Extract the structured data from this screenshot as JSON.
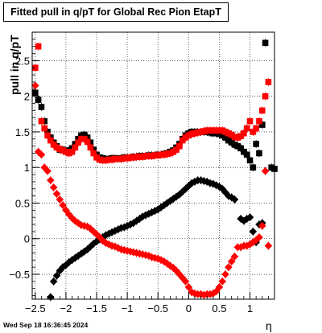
{
  "chart_data": {
    "type": "scatter",
    "title": "Fitted pull in q/pT for Global Rec Pion EtapT",
    "xlabel": "η",
    "ylabel": "pull in q/pT",
    "xlim": [
      -2.55,
      1.4
    ],
    "ylim": [
      -0.85,
      2.9
    ],
    "x_ticks": [
      -2.5,
      -2,
      -1.5,
      -1,
      -0.5,
      0,
      0.5,
      1
    ],
    "x_tick_labels": [
      "−2.5",
      "−2",
      "−1.5",
      "−1",
      "−0.5",
      "0",
      "0.5",
      "1"
    ],
    "y_ticks": [
      -0.5,
      0,
      0.5,
      1,
      1.5,
      2,
      2.5
    ],
    "y_tick_labels": [
      "−0.5",
      "0",
      "0.5",
      "1",
      "1.5",
      "2",
      "2.5"
    ],
    "grid": true,
    "timestamp": "Wed Sep 18 16:36:45 2024",
    "series": [
      {
        "color": "#000000",
        "marker": "square",
        "points": [
          [
            -2.5,
            2.05
          ],
          [
            -2.45,
            1.95
          ],
          [
            -2.4,
            1.85
          ],
          [
            -2.35,
            1.65
          ],
          [
            -2.3,
            1.5
          ],
          [
            -2.25,
            1.42
          ],
          [
            -2.2,
            1.35
          ],
          [
            -2.15,
            1.3
          ],
          [
            -2.1,
            1.25
          ],
          [
            -2.05,
            1.25
          ],
          [
            -2.0,
            1.22
          ],
          [
            -1.95,
            1.24
          ],
          [
            -1.9,
            1.27
          ],
          [
            -1.85,
            1.33
          ],
          [
            -1.8,
            1.4
          ],
          [
            -1.75,
            1.45
          ],
          [
            -1.7,
            1.46
          ],
          [
            -1.65,
            1.42
          ],
          [
            -1.6,
            1.35
          ],
          [
            -1.55,
            1.25
          ],
          [
            -1.5,
            1.18
          ],
          [
            -1.45,
            1.14
          ],
          [
            -1.4,
            1.13
          ],
          [
            -1.35,
            1.12
          ],
          [
            -1.3,
            1.12
          ],
          [
            -1.25,
            1.13
          ],
          [
            -1.2,
            1.13
          ],
          [
            -1.15,
            1.12
          ],
          [
            -1.1,
            1.13
          ],
          [
            -1.05,
            1.14
          ],
          [
            -1.0,
            1.14
          ],
          [
            -0.95,
            1.14
          ],
          [
            -0.9,
            1.15
          ],
          [
            -0.85,
            1.15
          ],
          [
            -0.8,
            1.16
          ],
          [
            -0.75,
            1.16
          ],
          [
            -0.7,
            1.16
          ],
          [
            -0.65,
            1.17
          ],
          [
            -0.6,
            1.17
          ],
          [
            -0.55,
            1.17
          ],
          [
            -0.5,
            1.18
          ],
          [
            -0.45,
            1.18
          ],
          [
            -0.4,
            1.19
          ],
          [
            -0.35,
            1.2
          ],
          [
            -0.3,
            1.22
          ],
          [
            -0.25,
            1.24
          ],
          [
            -0.2,
            1.28
          ],
          [
            -0.15,
            1.33
          ],
          [
            -0.1,
            1.4
          ],
          [
            -0.05,
            1.45
          ],
          [
            0.0,
            1.48
          ],
          [
            0.05,
            1.5
          ],
          [
            0.1,
            1.5
          ],
          [
            0.15,
            1.5
          ],
          [
            0.2,
            1.5
          ],
          [
            0.25,
            1.5
          ],
          [
            0.3,
            1.5
          ],
          [
            0.35,
            1.49
          ],
          [
            0.4,
            1.48
          ],
          [
            0.45,
            1.48
          ],
          [
            0.5,
            1.47
          ],
          [
            0.55,
            1.45
          ],
          [
            0.6,
            1.42
          ],
          [
            0.65,
            1.38
          ],
          [
            0.7,
            1.35
          ],
          [
            0.75,
            1.32
          ],
          [
            0.8,
            1.3
          ],
          [
            0.85,
            1.27
          ],
          [
            0.9,
            1.22
          ],
          [
            0.95,
            1.18
          ],
          [
            1.0,
            1.1
          ],
          [
            1.05,
            1.0
          ],
          [
            1.1,
            1.33
          ],
          [
            1.15,
            1.2
          ],
          [
            1.2,
            1.6
          ],
          [
            1.25,
            2.75
          ],
          [
            1.35,
            1.0
          ],
          [
            1.4,
            0.98
          ]
        ]
      },
      {
        "color": "#000000",
        "marker": "diamond",
        "points": [
          [
            -2.25,
            -0.82
          ],
          [
            -2.2,
            -0.6
          ],
          [
            -2.15,
            -0.52
          ],
          [
            -2.1,
            -0.45
          ],
          [
            -2.05,
            -0.4
          ],
          [
            -2.0,
            -0.37
          ],
          [
            -1.95,
            -0.33
          ],
          [
            -1.9,
            -0.3
          ],
          [
            -1.85,
            -0.27
          ],
          [
            -1.8,
            -0.24
          ],
          [
            -1.75,
            -0.21
          ],
          [
            -1.7,
            -0.18
          ],
          [
            -1.65,
            -0.15
          ],
          [
            -1.6,
            -0.11
          ],
          [
            -1.55,
            -0.07
          ],
          [
            -1.5,
            -0.04
          ],
          [
            -1.45,
            -0.01
          ],
          [
            -1.4,
            0.02
          ],
          [
            -1.35,
            0.05
          ],
          [
            -1.3,
            0.07
          ],
          [
            -1.25,
            0.09
          ],
          [
            -1.2,
            0.11
          ],
          [
            -1.15,
            0.13
          ],
          [
            -1.1,
            0.15
          ],
          [
            -1.05,
            0.16
          ],
          [
            -1.0,
            0.18
          ],
          [
            -0.95,
            0.2
          ],
          [
            -0.9,
            0.22
          ],
          [
            -0.85,
            0.25
          ],
          [
            -0.8,
            0.28
          ],
          [
            -0.75,
            0.31
          ],
          [
            -0.7,
            0.33
          ],
          [
            -0.65,
            0.35
          ],
          [
            -0.6,
            0.37
          ],
          [
            -0.55,
            0.39
          ],
          [
            -0.5,
            0.41
          ],
          [
            -0.45,
            0.44
          ],
          [
            -0.4,
            0.47
          ],
          [
            -0.35,
            0.5
          ],
          [
            -0.3,
            0.53
          ],
          [
            -0.25,
            0.56
          ],
          [
            -0.2,
            0.59
          ],
          [
            -0.15,
            0.62
          ],
          [
            -0.1,
            0.66
          ],
          [
            -0.05,
            0.7
          ],
          [
            0.0,
            0.74
          ],
          [
            0.05,
            0.78
          ],
          [
            0.1,
            0.8
          ],
          [
            0.15,
            0.82
          ],
          [
            0.2,
            0.82
          ],
          [
            0.25,
            0.81
          ],
          [
            0.3,
            0.8
          ],
          [
            0.35,
            0.78
          ],
          [
            0.4,
            0.77
          ],
          [
            0.45,
            0.75
          ],
          [
            0.5,
            0.73
          ],
          [
            0.55,
            0.7
          ],
          [
            0.6,
            0.65
          ],
          [
            0.65,
            0.6
          ],
          [
            0.7,
            0.58
          ],
          [
            0.75,
            0.55
          ],
          [
            0.85,
            0.28
          ],
          [
            0.9,
            0.25
          ],
          [
            0.95,
            0.28
          ],
          [
            1.0,
            0.3
          ],
          [
            1.05,
            0.1
          ],
          [
            1.1,
            -0.05
          ],
          [
            1.15,
            0.2
          ],
          [
            1.2,
            0.22
          ]
        ]
      },
      {
        "color": "#ff0000",
        "marker": "square",
        "points": [
          [
            -2.5,
            2.4
          ],
          [
            -2.45,
            2.7
          ],
          [
            -2.4,
            1.65
          ],
          [
            -2.35,
            1.55
          ],
          [
            -2.3,
            1.45
          ],
          [
            -2.25,
            1.38
          ],
          [
            -2.2,
            1.32
          ],
          [
            -2.15,
            1.28
          ],
          [
            -2.1,
            1.26
          ],
          [
            -2.05,
            1.24
          ],
          [
            -2.0,
            1.22
          ],
          [
            -1.95,
            1.2
          ],
          [
            -1.9,
            1.22
          ],
          [
            -1.85,
            1.28
          ],
          [
            -1.8,
            1.35
          ],
          [
            -1.75,
            1.4
          ],
          [
            -1.7,
            1.4
          ],
          [
            -1.65,
            1.36
          ],
          [
            -1.6,
            1.28
          ],
          [
            -1.55,
            1.2
          ],
          [
            -1.5,
            1.14
          ],
          [
            -1.45,
            1.11
          ],
          [
            -1.4,
            1.1
          ],
          [
            -1.35,
            1.1
          ],
          [
            -1.3,
            1.11
          ],
          [
            -1.25,
            1.11
          ],
          [
            -1.2,
            1.12
          ],
          [
            -1.15,
            1.12
          ],
          [
            -1.1,
            1.12
          ],
          [
            -1.05,
            1.13
          ],
          [
            -1.0,
            1.13
          ],
          [
            -0.95,
            1.14
          ],
          [
            -0.9,
            1.14
          ],
          [
            -0.85,
            1.15
          ],
          [
            -0.8,
            1.15
          ],
          [
            -0.75,
            1.15
          ],
          [
            -0.7,
            1.16
          ],
          [
            -0.65,
            1.16
          ],
          [
            -0.6,
            1.16
          ],
          [
            -0.55,
            1.17
          ],
          [
            -0.5,
            1.17
          ],
          [
            -0.45,
            1.18
          ],
          [
            -0.4,
            1.18
          ],
          [
            -0.35,
            1.19
          ],
          [
            -0.3,
            1.2
          ],
          [
            -0.25,
            1.22
          ],
          [
            -0.2,
            1.25
          ],
          [
            -0.15,
            1.3
          ],
          [
            -0.1,
            1.38
          ],
          [
            -0.05,
            1.42
          ],
          [
            0.0,
            1.45
          ],
          [
            0.05,
            1.47
          ],
          [
            0.1,
            1.48
          ],
          [
            0.15,
            1.49
          ],
          [
            0.2,
            1.5
          ],
          [
            0.25,
            1.51
          ],
          [
            0.3,
            1.52
          ],
          [
            0.35,
            1.52
          ],
          [
            0.4,
            1.52
          ],
          [
            0.45,
            1.52
          ],
          [
            0.5,
            1.52
          ],
          [
            0.55,
            1.52
          ],
          [
            0.6,
            1.5
          ],
          [
            0.65,
            1.48
          ],
          [
            0.7,
            1.46
          ],
          [
            0.75,
            1.43
          ],
          [
            0.8,
            1.42
          ],
          [
            0.85,
            1.44
          ],
          [
            0.9,
            1.48
          ],
          [
            0.95,
            1.55
          ],
          [
            1.0,
            1.65
          ],
          [
            1.05,
            1.5
          ],
          [
            1.1,
            1.55
          ],
          [
            1.15,
            1.65
          ],
          [
            1.2,
            1.8
          ],
          [
            1.25,
            2.0
          ],
          [
            1.3,
            2.2
          ]
        ]
      },
      {
        "color": "#ff0000",
        "marker": "diamond",
        "points": [
          [
            -2.5,
            2.15
          ],
          [
            -2.45,
            1.22
          ],
          [
            -2.4,
            1.18
          ],
          [
            -2.35,
            1.0
          ],
          [
            -2.3,
            0.95
          ],
          [
            -2.25,
            0.82
          ],
          [
            -2.2,
            0.72
          ],
          [
            -2.15,
            0.63
          ],
          [
            -2.1,
            0.55
          ],
          [
            -2.05,
            0.47
          ],
          [
            -2.0,
            0.4
          ],
          [
            -1.95,
            0.34
          ],
          [
            -1.9,
            0.29
          ],
          [
            -1.85,
            0.25
          ],
          [
            -1.8,
            0.22
          ],
          [
            -1.75,
            0.19
          ],
          [
            -1.7,
            0.18
          ],
          [
            -1.65,
            0.17
          ],
          [
            -1.6,
            0.14
          ],
          [
            -1.55,
            0.1
          ],
          [
            -1.5,
            0.06
          ],
          [
            -1.45,
            0.02
          ],
          [
            -1.4,
            -0.03
          ],
          [
            -1.35,
            -0.06
          ],
          [
            -1.3,
            -0.08
          ],
          [
            -1.25,
            -0.1
          ],
          [
            -1.2,
            -0.11
          ],
          [
            -1.15,
            -0.13
          ],
          [
            -1.1,
            -0.15
          ],
          [
            -1.05,
            -0.16
          ],
          [
            -1.0,
            -0.17
          ],
          [
            -0.95,
            -0.18
          ],
          [
            -0.9,
            -0.19
          ],
          [
            -0.85,
            -0.2
          ],
          [
            -0.8,
            -0.21
          ],
          [
            -0.75,
            -0.22
          ],
          [
            -0.7,
            -0.23
          ],
          [
            -0.65,
            -0.24
          ],
          [
            -0.6,
            -0.26
          ],
          [
            -0.55,
            -0.27
          ],
          [
            -0.5,
            -0.28
          ],
          [
            -0.45,
            -0.3
          ],
          [
            -0.4,
            -0.32
          ],
          [
            -0.35,
            -0.35
          ],
          [
            -0.3,
            -0.38
          ],
          [
            -0.25,
            -0.41
          ],
          [
            -0.2,
            -0.45
          ],
          [
            -0.15,
            -0.5
          ],
          [
            -0.1,
            -0.55
          ],
          [
            -0.05,
            -0.6
          ],
          [
            0.0,
            -0.68
          ],
          [
            0.05,
            -0.75
          ],
          [
            0.1,
            -0.77
          ],
          [
            0.15,
            -0.78
          ],
          [
            0.2,
            -0.78
          ],
          [
            0.25,
            -0.79
          ],
          [
            0.3,
            -0.78
          ],
          [
            0.35,
            -0.78
          ],
          [
            0.4,
            -0.77
          ],
          [
            0.45,
            -0.74
          ],
          [
            0.5,
            -0.68
          ],
          [
            0.55,
            -0.6
          ],
          [
            0.6,
            -0.5
          ],
          [
            0.65,
            -0.4
          ],
          [
            0.7,
            -0.32
          ],
          [
            0.75,
            -0.25
          ],
          [
            0.8,
            -0.12
          ],
          [
            0.85,
            -0.12
          ],
          [
            0.9,
            -0.1
          ],
          [
            0.95,
            -0.1
          ],
          [
            1.0,
            -0.08
          ],
          [
            1.05,
            -0.05
          ],
          [
            1.1,
            -0.02
          ],
          [
            1.15,
            0.02
          ],
          [
            1.2,
            0.18
          ],
          [
            1.25,
            0.95
          ],
          [
            1.3,
            -0.1
          ]
        ]
      }
    ]
  }
}
